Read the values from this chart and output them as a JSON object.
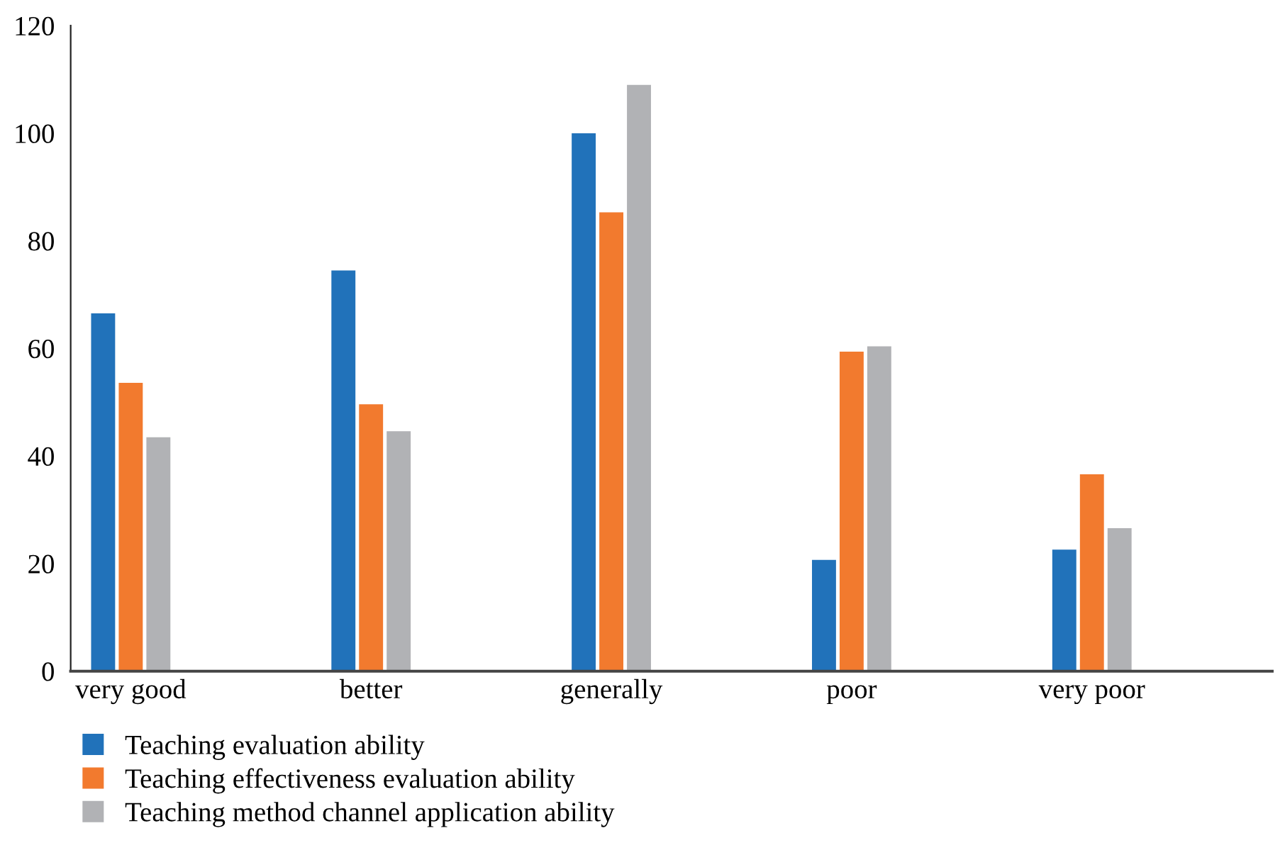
{
  "chart_data": {
    "type": "bar",
    "categories": [
      "very good",
      null,
      "better",
      null,
      "generally",
      null,
      "poor",
      null,
      "very poor",
      null
    ],
    "series": [
      {
        "name": "Teaching evaluation ability",
        "color": "#2172ba",
        "values": [
          66.5,
          0,
          74.5,
          0,
          100,
          0,
          20.7,
          0,
          22.6,
          0
        ]
      },
      {
        "name": "Teaching effectiveness evaluation ability",
        "color": "#f27a2e",
        "values": [
          53.6,
          0,
          49.6,
          0,
          85.3,
          0,
          59.4,
          0,
          36.6,
          0
        ]
      },
      {
        "name": "Teaching method channel application ability",
        "color": "#b1b2b5",
        "values": [
          43.5,
          0,
          44.6,
          0,
          109,
          0,
          60.4,
          0,
          26.6,
          0
        ]
      }
    ],
    "ylim": [
      0,
      120
    ],
    "yticks": [
      0,
      20,
      40,
      60,
      80,
      100,
      120
    ],
    "grid": false,
    "legend": "bottom left"
  }
}
